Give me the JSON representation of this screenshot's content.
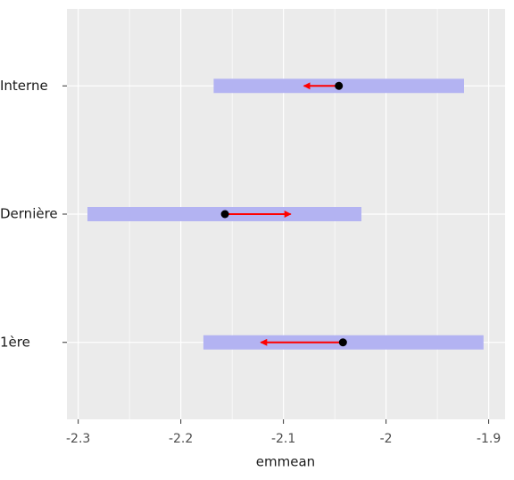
{
  "chart_data": {
    "type": "emmeans",
    "x_label": "emmean",
    "categories": [
      "1ère",
      "Dernière",
      "Interne"
    ],
    "lower": [
      -2.178,
      -2.291,
      -2.168
    ],
    "upper": [
      -1.905,
      -2.024,
      -1.924
    ],
    "values": [
      -2.042,
      -2.157,
      -2.046
    ],
    "arrow_to": [
      -2.122,
      -2.093,
      -2.08
    ],
    "xlim": [
      -2.311,
      -1.884
    ],
    "xticks": [
      -2.3,
      -2.2,
      -2.1,
      -2.0,
      {
        "value": -1.9,
        "label": "-1.9"
      }
    ],
    "xminor": [
      -2.25,
      -2.15,
      -2.05,
      -1.95
    ],
    "grid": true,
    "ci_color": "#b3b3f2",
    "point_color": "#000000",
    "arrow_color": "#ff0000"
  }
}
